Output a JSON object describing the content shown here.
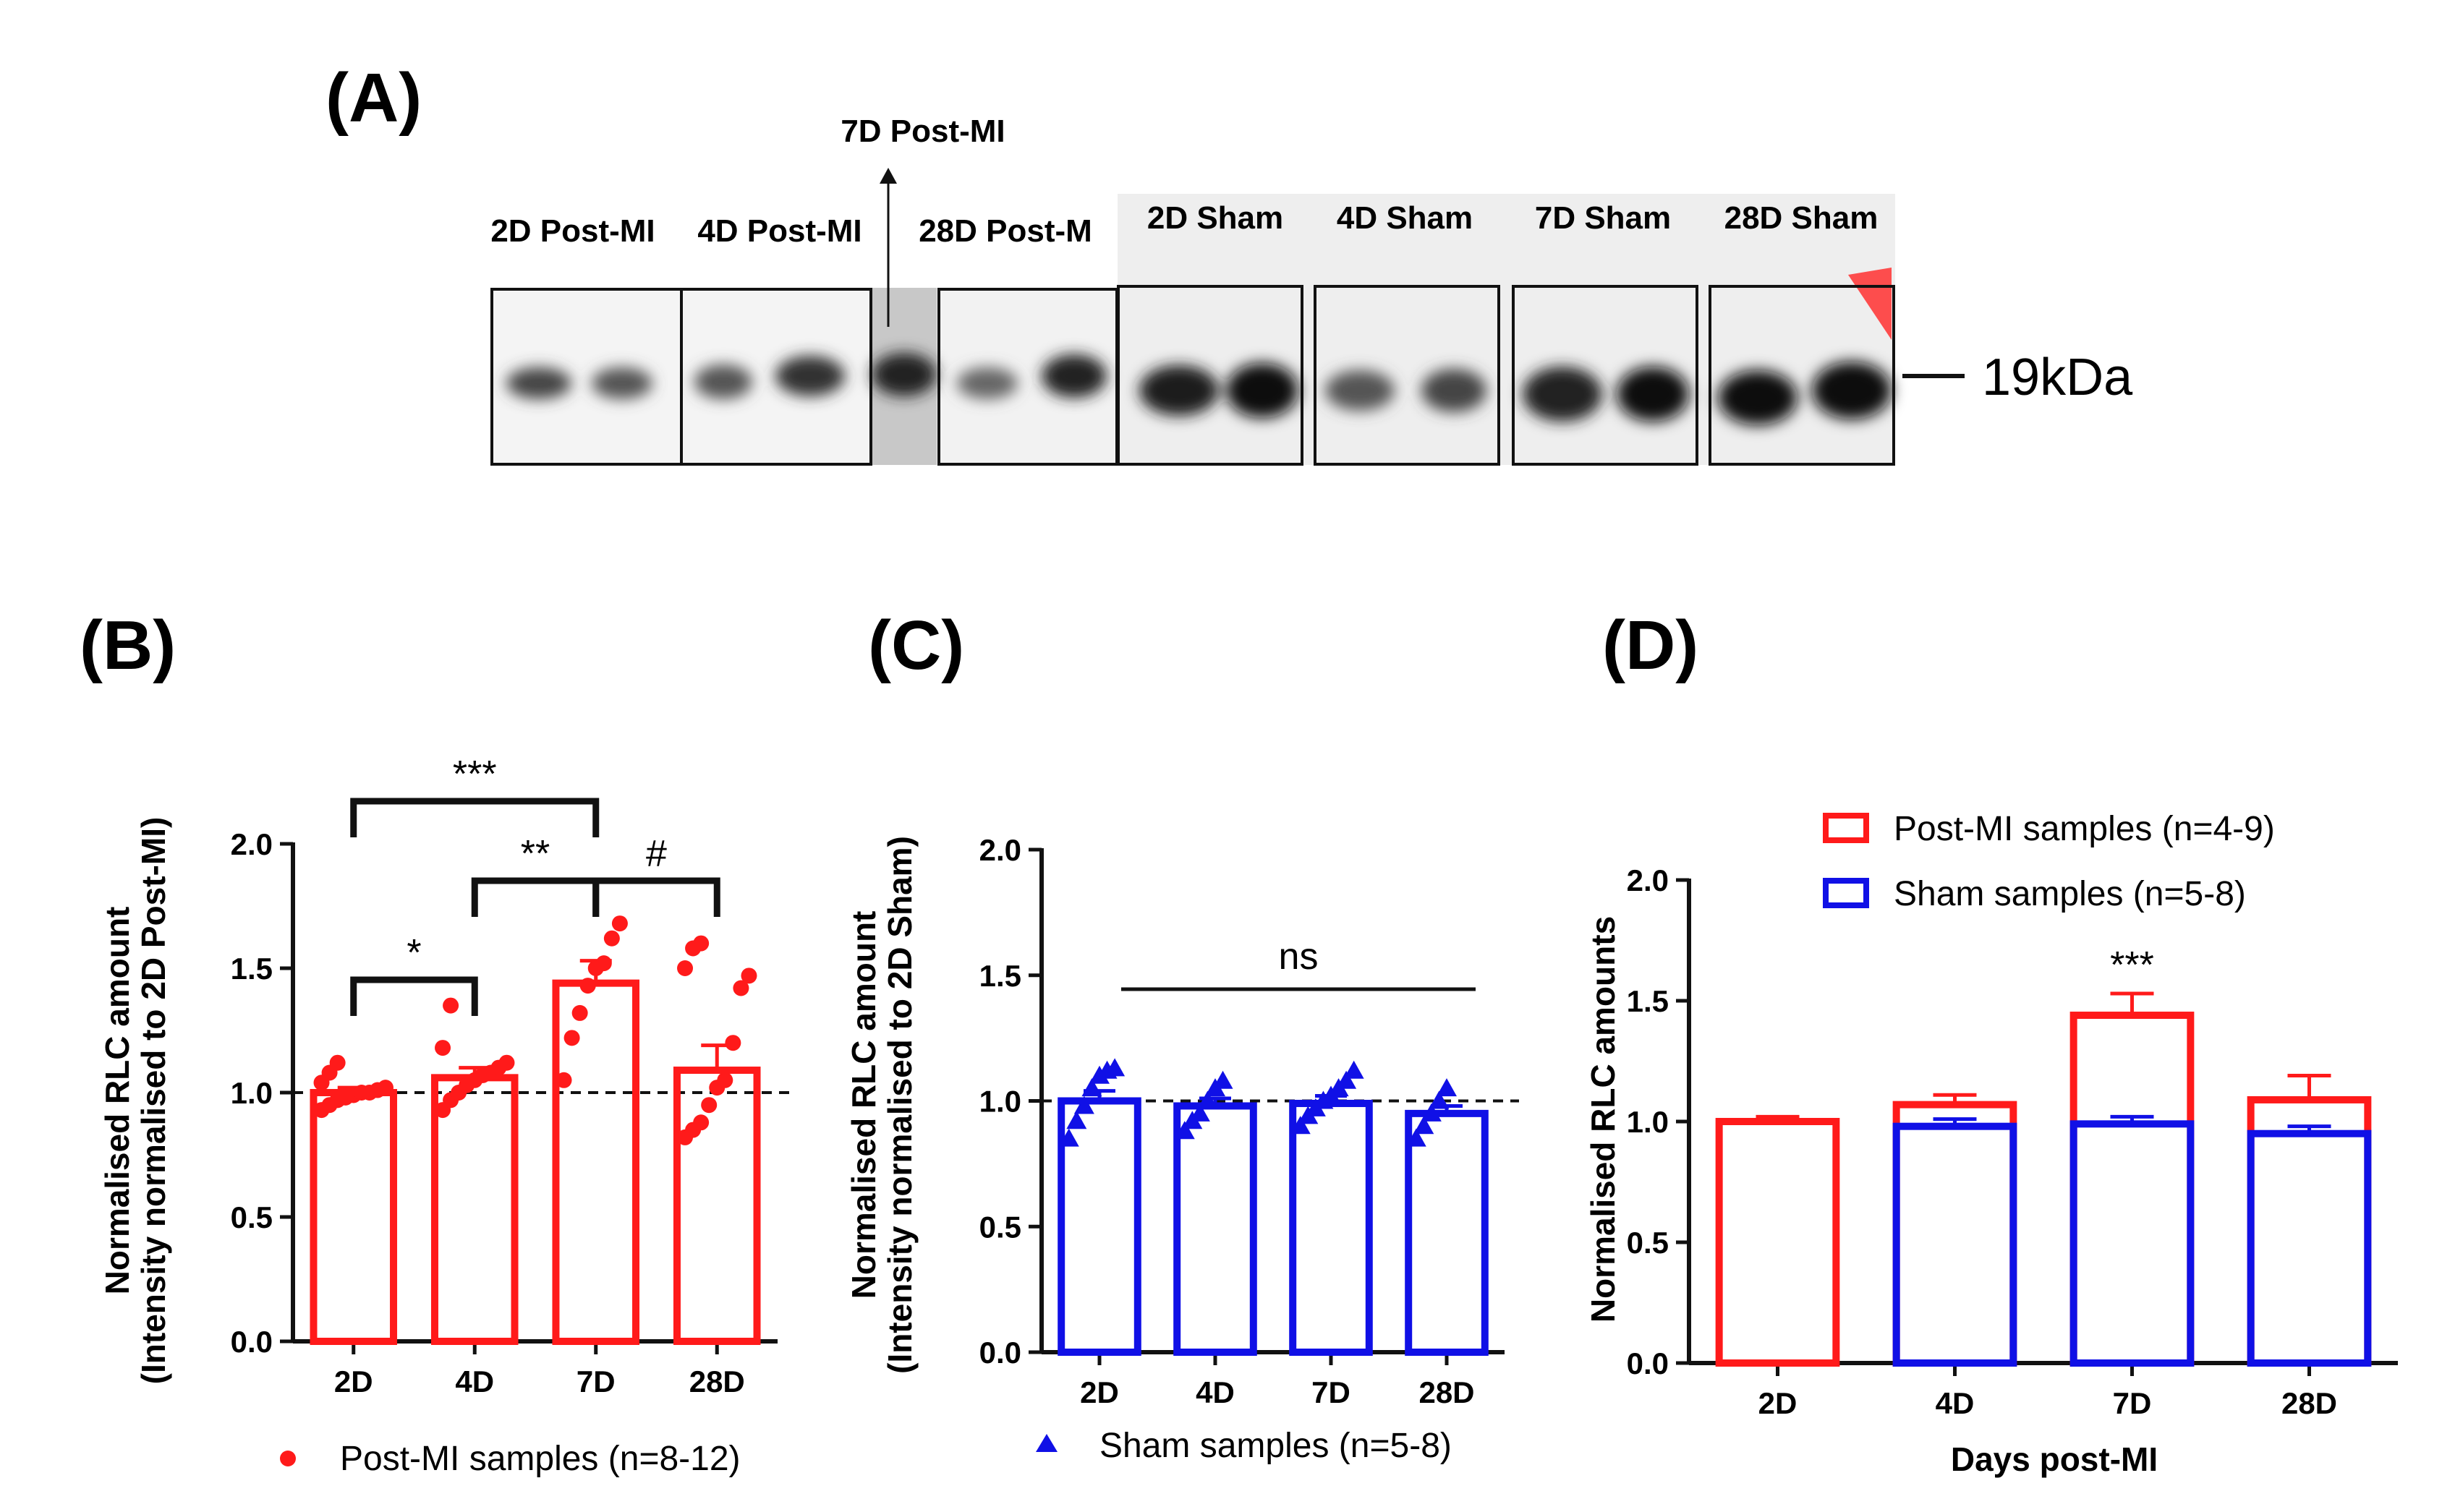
{
  "colors": {
    "post_mi": "#ff1a1a",
    "sham": "#1010e6",
    "black": "#111111"
  },
  "panel_a": {
    "label": "(A)",
    "lanes": [
      "2D Post-MI",
      "4D Post-MI",
      "28D Post-M",
      "2D Sham",
      "4D Sham",
      "7D Sham",
      "28D Sham"
    ],
    "arrow_label": "7D Post-MI",
    "marker_label": "19kDa"
  },
  "chart_data": [
    {
      "panel": "(B)",
      "type": "bar",
      "categories": [
        "2D",
        "4D",
        "7D",
        "28D"
      ],
      "ylabel_line1": "Normalised RLC amount",
      "ylabel_line2": "(Intensity normalised to 2D Post-MI)",
      "ylim": [
        0,
        2.0
      ],
      "yticks": [
        "0.0",
        "0.5",
        "1.0",
        "1.5",
        "2.0"
      ],
      "series": [
        {
          "name": "Post-MI samples (n=8-12)",
          "values": [
            1.0,
            1.06,
            1.44,
            1.09
          ],
          "sem": [
            0.02,
            0.04,
            0.09,
            0.1
          ]
        }
      ],
      "points": [
        [
          0.93,
          0.95,
          0.97,
          0.98,
          0.99,
          1.0,
          1.0,
          1.01,
          1.02,
          1.04,
          1.08,
          1.12
        ],
        [
          0.93,
          0.97,
          1.0,
          1.03,
          1.05,
          1.07,
          1.08,
          1.1,
          1.12,
          1.18,
          1.35
        ],
        [
          1.05,
          1.22,
          1.32,
          1.43,
          1.5,
          1.52,
          1.62,
          1.68
        ],
        [
          0.82,
          0.85,
          0.88,
          0.95,
          1.02,
          1.05,
          1.2,
          1.42,
          1.47,
          1.5,
          1.58,
          1.6
        ]
      ],
      "reference_line": 1.0,
      "annotations": [
        "***",
        "**",
        "*",
        "#"
      ],
      "legend": "Post-MI samples (n=8-12)"
    },
    {
      "panel": "(C)",
      "type": "bar",
      "categories": [
        "2D",
        "4D",
        "7D",
        "28D"
      ],
      "ylabel_line1": "Normalised RLC amount",
      "ylabel_line2": "(Intensity normalised to 2D Sham)",
      "ylim": [
        0,
        2.0
      ],
      "yticks": [
        "0.0",
        "0.5",
        "1.0",
        "1.5",
        "2.0"
      ],
      "series": [
        {
          "name": "Sham samples (n=5-8)",
          "values": [
            1.0,
            0.98,
            0.99,
            0.95
          ],
          "sem": [
            0.04,
            0.03,
            0.03,
            0.03
          ]
        }
      ],
      "points": [
        [
          0.85,
          0.92,
          0.98,
          1.05,
          1.1,
          1.12,
          1.13
        ],
        [
          0.88,
          0.92,
          0.95,
          1.0,
          1.05,
          1.08
        ],
        [
          0.9,
          0.94,
          0.97,
          1.0,
          1.02,
          1.05,
          1.08,
          1.12
        ],
        [
          0.85,
          0.9,
          0.95,
          1.0,
          1.05
        ]
      ],
      "reference_line": 1.0,
      "annotations": [
        "ns"
      ],
      "legend": "Sham samples (n=5-8)"
    },
    {
      "panel": "(D)",
      "type": "bar",
      "categories": [
        "2D",
        "4D",
        "7D",
        "28D"
      ],
      "xlabel": "Days post-MI",
      "ylabel": "Normalised RLC amounts",
      "ylim": [
        0,
        2.0
      ],
      "yticks": [
        "0.0",
        "0.5",
        "1.0",
        "1.5",
        "2.0"
      ],
      "series": [
        {
          "name": "Post-MI samples (n=4-9)",
          "values": [
            1.0,
            1.07,
            1.44,
            1.09
          ],
          "sem": [
            0.02,
            0.04,
            0.09,
            0.1
          ]
        },
        {
          "name": "Sham samples (n=5-8)",
          "values": [
            0,
            0.98,
            0.99,
            0.95
          ],
          "sem": [
            0,
            0.03,
            0.03,
            0.03
          ]
        }
      ],
      "annotations": [
        "***"
      ]
    }
  ]
}
